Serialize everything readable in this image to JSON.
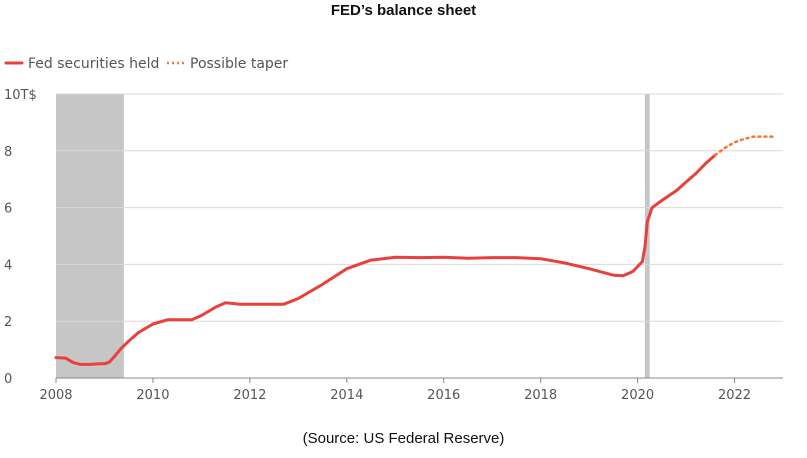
{
  "title": "FED’s balance sheet",
  "source": "(Source: US Federal Reserve)",
  "colors": {
    "series": "#e8403c",
    "taper": "#f07a3c",
    "recession": "#c6c6c6",
    "grid": "#d9d9d9",
    "axis": "#888888"
  },
  "chart_data": {
    "type": "line",
    "title": "FED’s balance sheet",
    "ylabel": "",
    "xlabel": "",
    "y_unit_label": "10T$",
    "xlim": [
      2008,
      2023
    ],
    "ylim": [
      0,
      10
    ],
    "x_ticks": [
      "2008",
      "2010",
      "2012",
      "2014",
      "2016",
      "2018",
      "2020",
      "2022"
    ],
    "y_ticks": [
      "0",
      "2",
      "4",
      "6",
      "8",
      "10T$"
    ],
    "grid": "horizontal",
    "legend_position": "top-left",
    "recession_bands": [
      [
        2008.0,
        2009.4
      ],
      [
        2020.15,
        2020.25
      ]
    ],
    "series": [
      {
        "name": "Fed securities held",
        "style": "solid",
        "x": [
          2008.0,
          2008.2,
          2008.35,
          2008.5,
          2008.7,
          2008.9,
          2009.0,
          2009.1,
          2009.2,
          2009.35,
          2009.5,
          2009.7,
          2010.0,
          2010.3,
          2010.5,
          2010.8,
          2011.0,
          2011.3,
          2011.5,
          2011.8,
          2012.0,
          2012.4,
          2012.7,
          2013.0,
          2013.5,
          2014.0,
          2014.5,
          2015.0,
          2015.5,
          2016.0,
          2016.5,
          2017.0,
          2017.5,
          2018.0,
          2018.5,
          2019.0,
          2019.5,
          2019.7,
          2019.9,
          2020.1,
          2020.15,
          2020.2,
          2020.3,
          2020.5,
          2020.8,
          2021.0,
          2021.2,
          2021.4,
          2021.6
        ],
        "values": [
          0.72,
          0.7,
          0.55,
          0.48,
          0.48,
          0.5,
          0.5,
          0.56,
          0.75,
          1.05,
          1.3,
          1.6,
          1.9,
          2.05,
          2.05,
          2.05,
          2.2,
          2.5,
          2.65,
          2.6,
          2.6,
          2.6,
          2.6,
          2.8,
          3.3,
          3.85,
          4.15,
          4.25,
          4.24,
          4.25,
          4.22,
          4.24,
          4.24,
          4.2,
          4.05,
          3.85,
          3.62,
          3.6,
          3.75,
          4.1,
          4.6,
          5.5,
          6.0,
          6.25,
          6.6,
          6.9,
          7.2,
          7.55,
          7.85
        ]
      },
      {
        "name": "Possible taper",
        "style": "dotted",
        "x": [
          2021.6,
          2021.8,
          2022.0,
          2022.2,
          2022.4,
          2022.6,
          2022.8
        ],
        "values": [
          7.85,
          8.1,
          8.3,
          8.42,
          8.5,
          8.5,
          8.5
        ]
      }
    ]
  }
}
